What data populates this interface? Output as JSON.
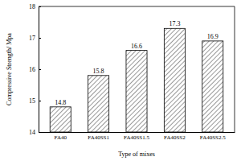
{
  "chart_data": {
    "type": "bar",
    "x_label": "Type of mixes",
    "y_label": "Compressive Strength/ Mpa",
    "categories": [
      "FA40",
      "FA40SS1",
      "FA40SS1.5",
      "FA40SS2",
      "FA40SS2.5"
    ],
    "values": [
      14.8,
      15.8,
      16.6,
      17.3,
      16.9
    ],
    "color": "#000000",
    "ylim": [
      14,
      18
    ],
    "yticks": [
      14,
      15,
      16,
      17,
      18
    ],
    "grid": false,
    "data_labels": true
  }
}
